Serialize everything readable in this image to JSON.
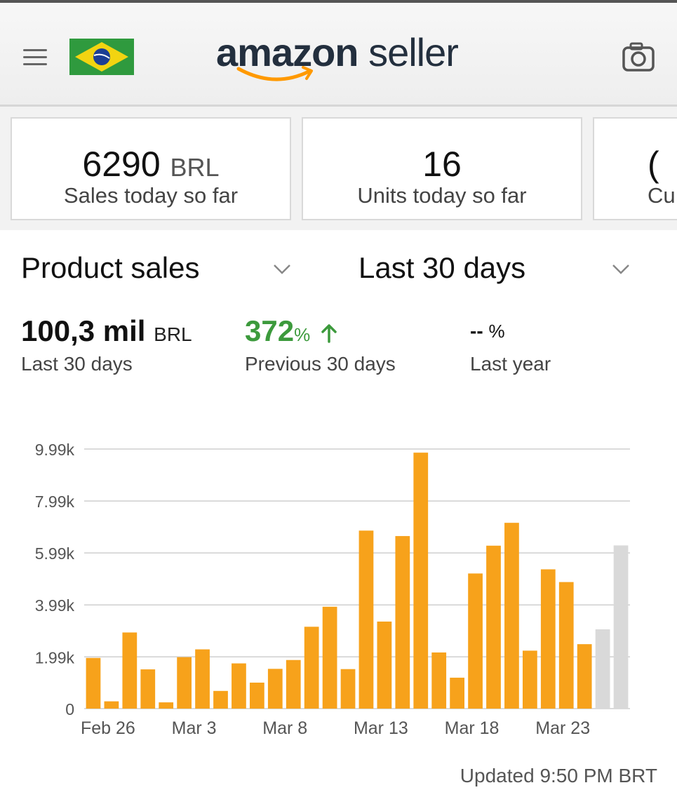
{
  "header": {
    "brand_primary": "amazon",
    "brand_secondary": "seller",
    "menu_icon": "hamburger-menu-icon",
    "flag_icon": "brazil-flag-icon",
    "camera_icon": "camera-icon",
    "brand_dark": "#232f3e",
    "brand_accent": "#ff9900"
  },
  "cards": [
    {
      "value": "6290",
      "unit": "BRL",
      "label": "Sales today so far"
    },
    {
      "value": "16",
      "unit": "",
      "label": "Units today so far"
    },
    {
      "value": "(",
      "unit": "",
      "label": "Cu"
    }
  ],
  "selectors": {
    "metric": "Product sales",
    "range": "Last 30 days"
  },
  "metrics": {
    "current": {
      "value": "100,3 mil",
      "unit": "BRL",
      "label": "Last 30 days"
    },
    "previous": {
      "value": "372",
      "unit": "%",
      "label": "Previous 30 days",
      "color": "#3c9a3c"
    },
    "last_year": {
      "value": "--",
      "unit": "%",
      "label": "Last year"
    }
  },
  "chart_data": {
    "type": "bar",
    "yticks": [
      "9.99k",
      "7.99k",
      "5.99k",
      "3.99k",
      "1.99k",
      "0"
    ],
    "ytick_values": [
      9990,
      7990,
      5990,
      3990,
      1990,
      0
    ],
    "ylim": [
      0,
      9990
    ],
    "xtick_labels": [
      "Feb 26",
      "Mar 3",
      "Mar 8",
      "Mar 13",
      "Mar 18",
      "Mar 23"
    ],
    "xtick_index": [
      0,
      5,
      10,
      15,
      20,
      25
    ],
    "values": [
      1950,
      280,
      2930,
      1510,
      240,
      1980,
      2280,
      680,
      1740,
      1000,
      1530,
      1870,
      3150,
      3920,
      1520,
      6850,
      3350,
      6640,
      9850,
      2160,
      1190,
      5200,
      6270,
      7150,
      2230,
      5360,
      4870,
      2480,
      3050,
      6280
    ],
    "bar_colors": [
      "#f7a21b",
      "#f7a21b",
      "#f7a21b",
      "#f7a21b",
      "#f7a21b",
      "#f7a21b",
      "#f7a21b",
      "#f7a21b",
      "#f7a21b",
      "#f7a21b",
      "#f7a21b",
      "#f7a21b",
      "#f7a21b",
      "#f7a21b",
      "#f7a21b",
      "#f7a21b",
      "#f7a21b",
      "#f7a21b",
      "#f7a21b",
      "#f7a21b",
      "#f7a21b",
      "#f7a21b",
      "#f7a21b",
      "#f7a21b",
      "#f7a21b",
      "#f7a21b",
      "#f7a21b",
      "#f7a21b",
      "#d9d9d9",
      "#d9d9d9"
    ],
    "grid": true
  },
  "footer": {
    "updated": "Updated 9:50 PM BRT"
  }
}
